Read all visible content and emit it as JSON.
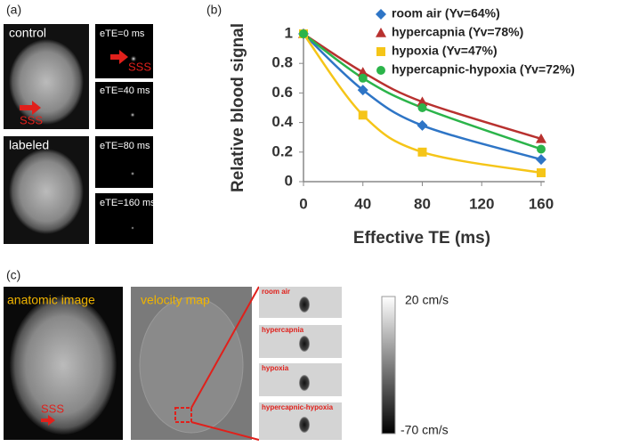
{
  "panel_a": {
    "label": "(a)",
    "control": "control",
    "labeled": "labeled",
    "sss_left": "SSS",
    "sss_right": "SSS",
    "ete": [
      "eTE=0 ms",
      "eTE=40 ms",
      "eTE=80 ms",
      "eTE=160 ms"
    ]
  },
  "chart_data": {
    "type": "line",
    "panel_label": "(b)",
    "x_label": "Effective TE (ms)",
    "y_label": "Relative blood signal",
    "x": [
      0,
      40,
      80,
      160
    ],
    "series": [
      {
        "name": "room air (Yv=64%)",
        "color": "#2e75c6",
        "marker": "diamond",
        "values": [
          1,
          0.62,
          0.38,
          0.15
        ]
      },
      {
        "name": "hypercapnia (Yv=78%)",
        "color": "#b8312f",
        "marker": "triangle",
        "values": [
          1,
          0.74,
          0.54,
          0.29
        ]
      },
      {
        "name": "hypoxia (Yv=47%)",
        "color": "#f5c518",
        "marker": "square",
        "values": [
          1,
          0.45,
          0.2,
          0.06
        ]
      },
      {
        "name": "hypercapnic-hypoxia (Yv=72%)",
        "color": "#2bb44a",
        "marker": "circle",
        "values": [
          1,
          0.7,
          0.5,
          0.22
        ]
      }
    ],
    "xlim": [
      0,
      160
    ],
    "xticks": [
      0,
      40,
      80,
      120,
      160
    ],
    "ylim": [
      0,
      1
    ],
    "yticks": [
      0,
      0.2,
      0.4,
      0.6,
      0.8,
      1
    ]
  },
  "panel_c": {
    "label": "(c)",
    "anatomic": "anatomic image",
    "velocity": "velocity map",
    "sss": "SSS",
    "strips": [
      "room air",
      "hypercapnia",
      "hypoxia",
      "hypercapnic-hypoxia"
    ],
    "scale_top": "20 cm/s",
    "scale_bottom": "-70 cm/s"
  }
}
